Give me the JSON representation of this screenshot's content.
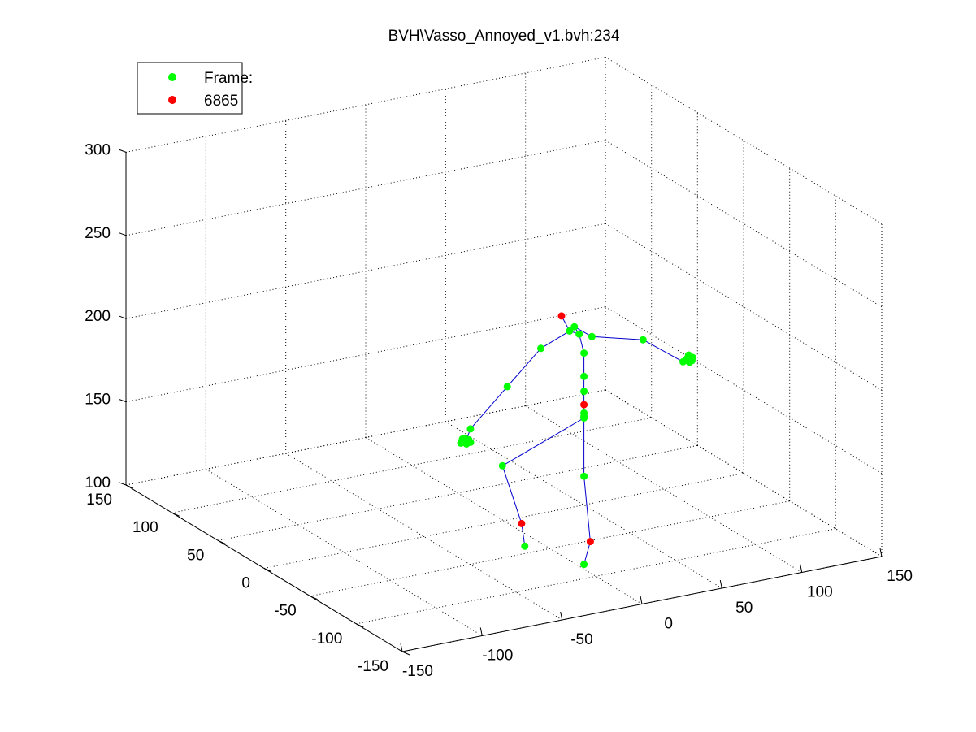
{
  "chart_data": {
    "type": "scatter",
    "subtype": "3d-skeleton",
    "title": "BVH\\Vasso_Annoyed_v1.bvh:234",
    "legend": {
      "placement": "top-left",
      "entries": [
        {
          "label": "Frame:",
          "color": "#00ff00"
        },
        {
          "label": "6865",
          "color": "#ff0000"
        }
      ]
    },
    "grid": true,
    "xlim": [
      -150,
      150
    ],
    "ylim": [
      -150,
      150
    ],
    "zlim": [
      100,
      300
    ],
    "xticks": [
      "-150",
      "-100",
      "-50",
      "0",
      "50",
      "100",
      "150"
    ],
    "yticks": [
      "-150",
      "-100",
      "-50",
      "0",
      "50",
      "100",
      "150"
    ],
    "zticks": [
      "100",
      "150",
      "200",
      "250",
      "300"
    ],
    "colors": {
      "joint": "#00ff00",
      "end_site": "#ff0000",
      "bone": "#0000cc",
      "grid": "#808080"
    },
    "joints": {
      "hips": [
        53,
        5,
        153
      ],
      "spine": [
        53,
        5,
        158
      ],
      "spine1": [
        53,
        5,
        166
      ],
      "spine2": [
        53,
        5,
        175
      ],
      "spine3": [
        53,
        5,
        189
      ],
      "neck": [
        50,
        5,
        201
      ],
      "head": [
        44,
        5,
        204
      ],
      "head_top": [
        39,
        5,
        214
      ],
      "neck_r": [
        47,
        5,
        206
      ],
      "l_shoulder": [
        58,
        5,
        198
      ],
      "l_elbow": [
        90,
        5,
        190
      ],
      "l_wrist": [
        115,
        5,
        172
      ],
      "l_hand": [
        118,
        5,
        174
      ],
      "r_shoulder": [
        26,
        5,
        197
      ],
      "r_elbow": [
        5,
        5,
        178
      ],
      "r_wrist": [
        -18,
        5,
        157
      ],
      "r_hand": [
        -21,
        5,
        150
      ],
      "l_hip": [
        53,
        5,
        151
      ],
      "l_knee": [
        53,
        5,
        115
      ],
      "l_ankle": [
        57,
        5,
        75
      ],
      "l_toe": [
        53,
        5,
        62
      ],
      "r_hip": [
        53,
        5,
        150
      ],
      "r_upleg": [
        2,
        5,
        131
      ],
      "r_knee": [
        14,
        5,
        94
      ],
      "r_ankle": [
        16,
        5,
        80
      ]
    },
    "end_sites": [
      "head_top",
      "spine",
      "r_knee",
      "l_ankle"
    ],
    "bones": [
      [
        "hips",
        "spine"
      ],
      [
        "spine",
        "spine1"
      ],
      [
        "spine1",
        "spine2"
      ],
      [
        "spine2",
        "spine3"
      ],
      [
        "spine3",
        "neck"
      ],
      [
        "neck",
        "head"
      ],
      [
        "head",
        "head_top"
      ],
      [
        "neck",
        "neck_r"
      ],
      [
        "neck_r",
        "l_shoulder"
      ],
      [
        "l_shoulder",
        "l_elbow"
      ],
      [
        "l_elbow",
        "l_wrist"
      ],
      [
        "l_wrist",
        "l_hand"
      ],
      [
        "head",
        "r_shoulder"
      ],
      [
        "r_shoulder",
        "r_elbow"
      ],
      [
        "r_elbow",
        "r_wrist"
      ],
      [
        "r_wrist",
        "r_hand"
      ],
      [
        "hips",
        "l_hip"
      ],
      [
        "l_hip",
        "l_knee"
      ],
      [
        "l_knee",
        "l_ankle"
      ],
      [
        "l_ankle",
        "l_toe"
      ],
      [
        "hips",
        "r_hip"
      ],
      [
        "r_hip",
        "r_upleg"
      ],
      [
        "r_upleg",
        "r_knee"
      ],
      [
        "r_knee",
        "r_ankle"
      ]
    ]
  }
}
